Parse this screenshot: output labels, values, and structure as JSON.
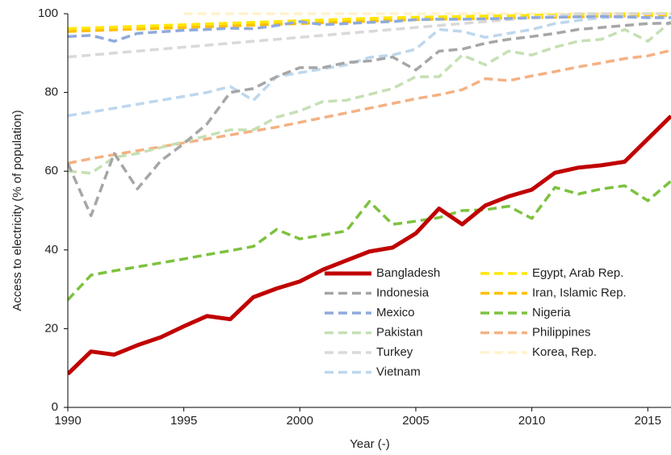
{
  "chart_data": {
    "type": "line",
    "x_label": "Year (-)",
    "y_label": "Access to electricity (% of population)",
    "x": [
      1990,
      1991,
      1992,
      1993,
      1994,
      1995,
      1996,
      1997,
      1998,
      1999,
      2000,
      2001,
      2002,
      2003,
      2004,
      2005,
      2006,
      2007,
      2008,
      2009,
      2010,
      2011,
      2012,
      2013,
      2014,
      2015,
      2016
    ],
    "xlim": [
      1990,
      2016
    ],
    "xticks": [
      1990,
      1995,
      2000,
      2005,
      2010,
      2015
    ],
    "ylim": [
      0,
      100
    ],
    "yticks": [
      0,
      20,
      40,
      60,
      80,
      100
    ],
    "grid": false,
    "legend": "lower right",
    "series": [
      {
        "name": "Bangladesh",
        "color": "#c00000",
        "line_style": "solid",
        "values": [
          8.5,
          14.2,
          13.4,
          15.8,
          17.8,
          20.6,
          23.2,
          22.4,
          28,
          30.2,
          32,
          35,
          37.3,
          39.6,
          40.6,
          44.2,
          50.5,
          46.5,
          51.3,
          53.6,
          55.3,
          59.6,
          60.9,
          61.5,
          62.4,
          68.2,
          74
        ]
      },
      {
        "name": "Indonesia",
        "color": "#a6a6a6",
        "line_style": "dashed",
        "values": [
          62,
          48.7,
          64.5,
          55.5,
          62.6,
          67,
          72,
          80,
          81,
          84,
          86.3,
          86.3,
          87.6,
          88,
          89,
          85.7,
          90.5,
          91,
          92.5,
          93.5,
          94.2,
          95,
          96,
          96.5,
          97,
          97.5,
          97.6
        ]
      },
      {
        "name": "Mexico",
        "color": "#8faadc",
        "line_style": "dashed",
        "values": [
          94.2,
          94.5,
          93,
          95,
          95.4,
          95.8,
          96,
          96.3,
          96.2,
          97,
          98,
          97.2,
          97.5,
          97.8,
          98,
          98.5,
          98.6,
          98.6,
          98.7,
          98.8,
          99,
          99.1,
          99.2,
          99.3,
          99.2,
          99,
          99
        ]
      },
      {
        "name": "Pakistan",
        "color": "#c5e0b4",
        "line_style": "dashed",
        "values": [
          60,
          59.5,
          63.5,
          64.5,
          66,
          67.5,
          69,
          70.5,
          70.5,
          73.7,
          75.3,
          77.7,
          78,
          79.5,
          81,
          84,
          84,
          89.5,
          87,
          90.5,
          89.5,
          91.5,
          93,
          93.5,
          96,
          93,
          98
        ]
      },
      {
        "name": "Turkey",
        "color": "#d9d9d9",
        "line_style": "dashed",
        "values": [
          89,
          89.5,
          90,
          90.5,
          91,
          91.5,
          92,
          92.5,
          93,
          93.5,
          94,
          94.5,
          95,
          95.5,
          96,
          96.5,
          97,
          97.5,
          98,
          98.5,
          99,
          99.5,
          100,
          100,
          100,
          100,
          100
        ]
      },
      {
        "name": "Vietnam",
        "color": "#bdd7ee",
        "line_style": "dashed",
        "values": [
          74.1,
          75,
          76,
          77,
          78,
          79,
          80,
          81.5,
          78,
          84,
          85,
          86,
          87,
          88.9,
          89.5,
          91,
          96,
          95.5,
          94,
          95,
          96,
          97.5,
          98.3,
          99,
          99.2,
          99,
          99
        ]
      },
      {
        "name": "Egypt, Arab Rep.",
        "color": "#ffe600",
        "line_style": "dashed",
        "values": [
          96.2,
          96.4,
          96.6,
          96.8,
          97,
          97.2,
          97.4,
          97.6,
          97.8,
          98,
          98.2,
          98.4,
          98.6,
          98.8,
          99,
          99.1,
          99.2,
          99.3,
          99.4,
          99.5,
          99.6,
          99.7,
          99.8,
          99.9,
          100,
          100,
          100
        ]
      },
      {
        "name": "Iran, Islamic Rep.",
        "color": "#ffc000",
        "line_style": "dashed",
        "values": [
          95.5,
          95.7,
          95.9,
          96.1,
          96.3,
          96.5,
          96.7,
          96.9,
          97.1,
          97.3,
          97.5,
          97.7,
          97.9,
          98.1,
          98.3,
          98.5,
          98.6,
          98.7,
          98.8,
          98.9,
          99,
          99.1,
          99.2,
          99.3,
          99.4,
          99.5,
          99.5
        ]
      },
      {
        "name": "Nigeria",
        "color": "#7dc23e",
        "line_style": "dashed",
        "values": [
          27.3,
          33.6,
          34.7,
          35.7,
          36.7,
          37.7,
          38.8,
          39.8,
          40.9,
          45.2,
          42.8,
          43.8,
          44.8,
          52.3,
          46.5,
          47.3,
          48.2,
          50,
          50.2,
          51.1,
          48,
          55.9,
          54.2,
          55.5,
          56.3,
          52.5,
          57.5
        ]
      },
      {
        "name": "Philippines",
        "color": "#f4b183",
        "line_style": "dashed",
        "values": [
          62,
          63.2,
          64.2,
          65.2,
          66.2,
          67.2,
          68.2,
          69.2,
          70.2,
          71.2,
          72.4,
          73.6,
          74.8,
          76,
          77.2,
          78.4,
          79.4,
          80.7,
          83.5,
          83,
          84.2,
          85.3,
          86.5,
          87.5,
          88.6,
          89.3,
          90.7
        ]
      },
      {
        "name": "Korea, Rep.",
        "color": "#fff2cc",
        "line_style": "dashed",
        "values": [
          null,
          null,
          null,
          null,
          null,
          100,
          100,
          100,
          100,
          100,
          100,
          100,
          100,
          100,
          100,
          100,
          100,
          100,
          100,
          100,
          100,
          100,
          100,
          100,
          100,
          100,
          100
        ]
      }
    ]
  }
}
